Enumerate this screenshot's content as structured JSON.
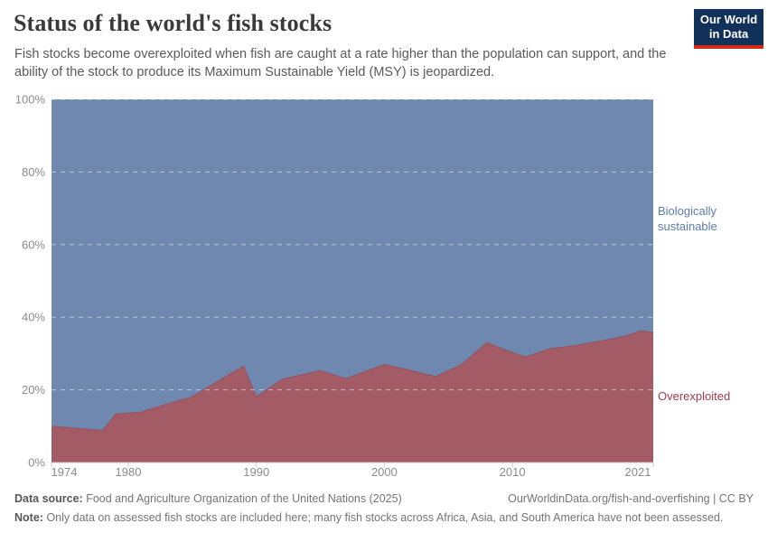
{
  "header": {
    "title": "Status of the world's fish stocks",
    "subtitle": "Fish stocks become overexploited when fish are caught at a rate higher than the population can support, and the ability of the stock to produce its Maximum Sustainable Yield (MSY) is jeopardized.",
    "logo": {
      "line1": "Our World",
      "line2": "in Data",
      "bg_color": "#12315a",
      "bar_color": "#d52a16",
      "text_color": "#ffffff"
    }
  },
  "chart_data": {
    "type": "area",
    "stacked": true,
    "title": "Status of the world's fish stocks",
    "xlabel": "",
    "ylabel": "",
    "x": [
      1974,
      1975,
      1976,
      1977,
      1978,
      1979,
      1980,
      1981,
      1982,
      1983,
      1984,
      1985,
      1986,
      1987,
      1988,
      1989,
      1990,
      1991,
      1992,
      1993,
      1994,
      1995,
      1996,
      1997,
      1998,
      1999,
      2000,
      2001,
      2002,
      2003,
      2004,
      2005,
      2006,
      2007,
      2008,
      2009,
      2010,
      2011,
      2012,
      2013,
      2014,
      2015,
      2016,
      2017,
      2018,
      2019,
      2020,
      2021
    ],
    "series": [
      {
        "name": "Biologically sustainable",
        "color": "#6f88af",
        "label_color": "#5b7cae",
        "values": [
          90.0,
          90.3,
          90.6,
          90.9,
          91.2,
          86.7,
          86.4,
          86.1,
          85.0,
          83.9,
          82.9,
          81.9,
          79.7,
          77.6,
          75.5,
          73.5,
          81.9,
          79.5,
          77.1,
          76.3,
          75.5,
          74.7,
          75.8,
          76.9,
          75.6,
          74.3,
          73.0,
          73.8,
          74.6,
          75.5,
          76.3,
          74.7,
          73.1,
          70.1,
          67.0,
          68.4,
          69.7,
          71.0,
          69.8,
          68.6,
          68.2,
          67.7,
          67.1,
          66.5,
          65.8,
          65.0,
          63.7,
          64.2
        ]
      },
      {
        "name": "Overexploited",
        "color": "#a35b66",
        "edge_color": "#96505e",
        "label_color": "#9e3a4f",
        "values": [
          10.0,
          9.7,
          9.4,
          9.1,
          8.8,
          13.3,
          13.6,
          13.9,
          15.0,
          16.1,
          17.1,
          18.1,
          20.3,
          22.4,
          24.5,
          26.5,
          18.1,
          20.5,
          22.9,
          23.7,
          24.5,
          25.3,
          24.2,
          23.1,
          24.4,
          25.7,
          27.0,
          26.2,
          25.4,
          24.5,
          23.7,
          25.3,
          26.9,
          29.9,
          33.0,
          31.6,
          30.3,
          29.0,
          30.2,
          31.4,
          31.8,
          32.3,
          32.9,
          33.5,
          34.2,
          35.0,
          36.3,
          35.8
        ]
      }
    ],
    "ylim": [
      0,
      100
    ],
    "y_ticks": [
      0,
      20,
      40,
      60,
      80,
      100
    ],
    "y_tick_suffix": "%",
    "x_ticks": [
      1974,
      1980,
      1990,
      2000,
      2010,
      2021
    ],
    "grid": "horizontal-dashed",
    "legend_position": "right-inline-labels",
    "axis_text_color": "#8b8b8b",
    "axis_line_color": "#c8c8c8",
    "gridline_color": "#eef1f6"
  },
  "footer": {
    "data_source_label": "Data source:",
    "data_source_value": "Food and Agriculture Organization of the United Nations (2025)",
    "link": "OurWorldinData.org/fish-and-overfishing | CC BY",
    "note_label": "Note:",
    "note_value": "Only data on assessed fish stocks are included here; many fish stocks across Africa, Asia, and South America have not been assessed."
  }
}
